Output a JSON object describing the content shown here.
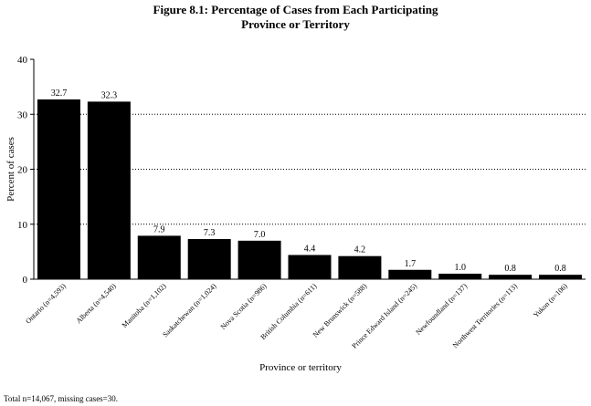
{
  "figure": {
    "title_line1": "Figure 8.1:  Percentage of Cases from Each Participating",
    "title_line2": "Province or Territory",
    "footnote": "Total n=14,067, missing cases=30."
  },
  "chart_data": {
    "type": "bar",
    "title": "Figure 8.1: Percentage of Cases from Each Participating Province or Territory",
    "xlabel": "Province or territory",
    "ylabel": "Percent of cases",
    "ylim": [
      0,
      40
    ],
    "yticks": [
      0,
      10,
      20,
      30,
      40
    ],
    "grid": "dotted horizontal",
    "bar_color": "#000000",
    "categories": [
      "Ontario (n=4,593)",
      "Alberta (n=4,540)",
      "Manitoba (n=1,102)",
      "Saskatchewan (n=1,024)",
      "Nova Scotia (n=986)",
      "British Columbia (n=611)",
      "New Brunswick (n=588)",
      "Prince Edward Island (n=245)",
      "Newfoundland (n=137)",
      "Northwest Territories (n=113)",
      "Yukon (n=106)"
    ],
    "values": [
      32.7,
      32.3,
      7.9,
      7.3,
      7.0,
      4.4,
      4.2,
      1.7,
      1.0,
      0.8,
      0.8
    ],
    "value_labels": [
      "32.7",
      "32.3",
      "7.9",
      "7.3",
      "7.0",
      "4.4",
      "4.2",
      "1.7",
      "1.0",
      "0.8",
      "0.8"
    ]
  }
}
